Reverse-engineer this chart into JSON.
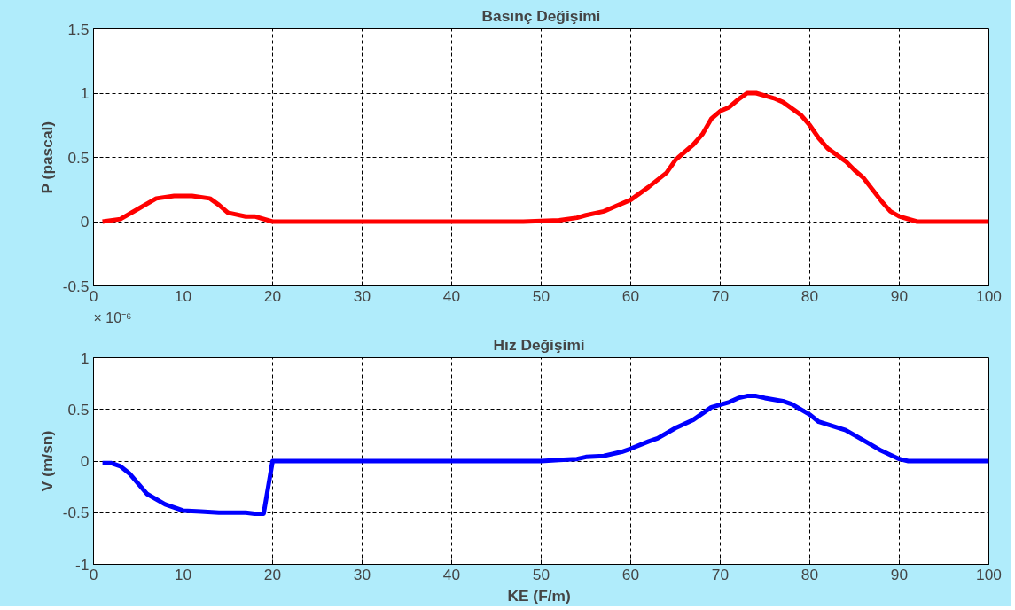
{
  "chart_data": [
    {
      "type": "line",
      "title": "Basınç Değişimi",
      "ylabel": "P (pascal)",
      "xlim": [
        0,
        100
      ],
      "xticks": [
        0,
        10,
        20,
        30,
        40,
        50,
        60,
        70,
        80,
        90,
        100
      ],
      "ylim": [
        -0.5,
        1.5
      ],
      "yticks": [
        -0.5,
        0,
        0.5,
        1,
        1.5
      ],
      "grid": true,
      "line_style": "solid",
      "marker": "none",
      "series": [
        {
          "color": "#ff0000",
          "x": [
            1,
            3,
            5,
            7,
            9,
            11,
            13,
            14,
            15,
            17,
            18,
            20,
            48,
            52,
            54,
            55,
            57,
            58,
            60,
            62,
            64,
            65,
            67,
            68,
            69,
            70,
            71,
            72,
            73,
            74,
            76,
            77,
            79,
            80,
            81,
            82,
            84,
            85,
            86,
            87,
            88,
            89,
            90,
            92,
            100
          ],
          "values": [
            0,
            0.02,
            0.1,
            0.18,
            0.2,
            0.2,
            0.18,
            0.13,
            0.07,
            0.04,
            0.04,
            0,
            0,
            0.01,
            0.03,
            0.05,
            0.08,
            0.11,
            0.17,
            0.27,
            0.38,
            0.48,
            0.6,
            0.68,
            0.8,
            0.86,
            0.89,
            0.95,
            1.0,
            1.0,
            0.96,
            0.93,
            0.83,
            0.75,
            0.65,
            0.57,
            0.47,
            0.4,
            0.34,
            0.25,
            0.16,
            0.08,
            0.04,
            0,
            0
          ]
        }
      ]
    },
    {
      "type": "line",
      "title": "Hız  Değişimi",
      "xlabel": "KE  (F/m)",
      "ylabel": "V (m/sn)",
      "annotations": [
        "× 10⁻⁶"
      ],
      "xlim": [
        0,
        100
      ],
      "xticks": [
        0,
        10,
        20,
        30,
        40,
        50,
        60,
        70,
        80,
        90,
        100
      ],
      "ylim": [
        -1,
        1
      ],
      "yticks": [
        -1,
        -0.5,
        0,
        0.5,
        1
      ],
      "grid": true,
      "line_style": "solid",
      "marker": "none",
      "series": [
        {
          "color": "#0000ff",
          "x": [
            1,
            2,
            3,
            4,
            5,
            6,
            8,
            10,
            12,
            14,
            17,
            18,
            19,
            20,
            50,
            52,
            54,
            55,
            57,
            59,
            60,
            62,
            63,
            65,
            67,
            69,
            71,
            72,
            73,
            74,
            75,
            77,
            78,
            80,
            81,
            84,
            86,
            88,
            90,
            91,
            100
          ],
          "values": [
            -0.02,
            -0.02,
            -0.05,
            -0.12,
            -0.22,
            -0.32,
            -0.42,
            -0.48,
            -0.49,
            -0.5,
            -0.5,
            -0.51,
            -0.51,
            0,
            0,
            0.01,
            0.02,
            0.04,
            0.05,
            0.09,
            0.12,
            0.19,
            0.22,
            0.32,
            0.4,
            0.52,
            0.57,
            0.61,
            0.63,
            0.63,
            0.61,
            0.58,
            0.55,
            0.45,
            0.38,
            0.3,
            0.2,
            0.1,
            0.02,
            0,
            0
          ]
        }
      ]
    }
  ]
}
